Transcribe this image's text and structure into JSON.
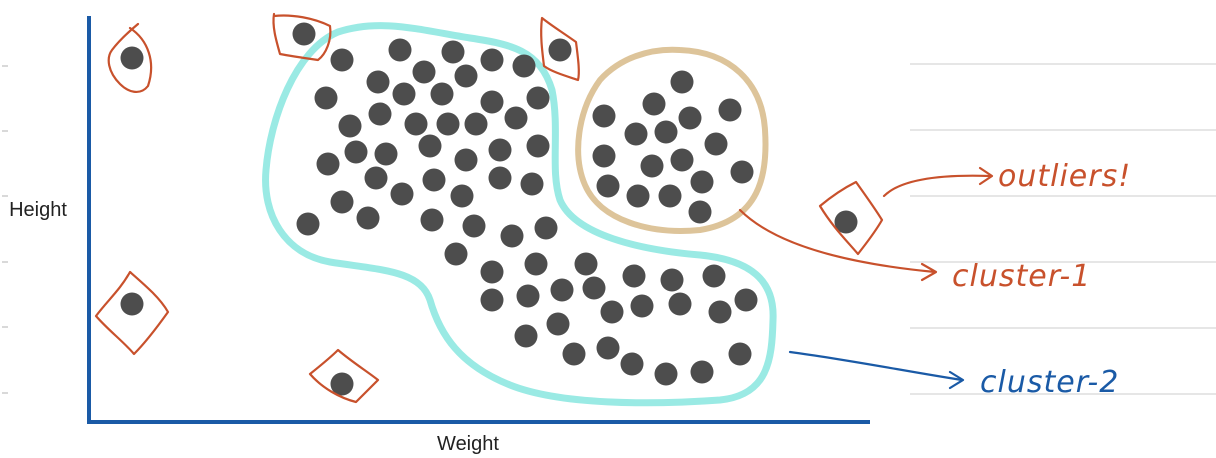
{
  "axes": {
    "x_label": "Weight",
    "y_label": "Height"
  },
  "annotations": {
    "outliers": "outliers!",
    "cluster_1": "cluster-1",
    "cluster_2": "cluster-2"
  },
  "colors": {
    "axis": "#1a5aa6",
    "point": "#4d4d4d",
    "cluster_1_outline": "#ddc49a",
    "cluster_2_outline": "#9aeae4",
    "outlier_mark": "#c8512c",
    "cluster_2_annotation": "#1a5aa6",
    "notebook_lines": "#dedede"
  }
}
